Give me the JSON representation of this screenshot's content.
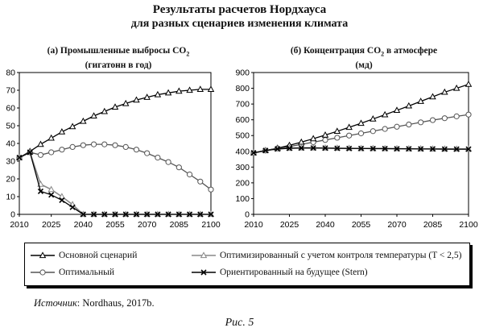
{
  "figure": {
    "title_line1": "Результаты расчетов Нордхауса",
    "title_line2": "для разных сценариев изменения климата",
    "source_label": "Источник",
    "source_text": ": Nordhaus, 2017b.",
    "caption": "Рис. 5"
  },
  "colors": {
    "base": "#000000",
    "optimal": "#555555",
    "temp_limited": "#888888",
    "stern": "#000000"
  },
  "legend": {
    "items": [
      {
        "label": "Основной сценарий",
        "series_key": "base",
        "marker": "triangle"
      },
      {
        "label": "Оптимизированный с учетом контроля температуры (T < 2,5)",
        "series_key": "temp_limited",
        "marker": "triangle"
      },
      {
        "label": "Оптимальный",
        "series_key": "optimal",
        "marker": "circle"
      },
      {
        "label": "Ориентированный на будущее (Stern)",
        "series_key": "stern",
        "marker": "cross"
      }
    ]
  },
  "chart_data": [
    {
      "type": "line",
      "title_line1": "(а) Промышленные выбросы CO",
      "title_sub": "2",
      "title_line2": "(гигатонн в год)",
      "x": [
        2010,
        2015,
        2020,
        2025,
        2030,
        2035,
        2040,
        2045,
        2050,
        2055,
        2060,
        2065,
        2070,
        2075,
        2080,
        2085,
        2090,
        2095,
        2100
      ],
      "xlim": [
        2010,
        2100
      ],
      "xticks": [
        2010,
        2025,
        2040,
        2055,
        2070,
        2085,
        2100
      ],
      "ylim": [
        0,
        80
      ],
      "yticks": [
        0,
        10,
        20,
        30,
        40,
        50,
        60,
        70,
        80
      ],
      "grid": false,
      "series": [
        {
          "key": "base",
          "name": "Основной сценарий",
          "marker": "triangle",
          "values": [
            32,
            35.5,
            39.5,
            43,
            46.5,
            49.5,
            52.5,
            55.5,
            58,
            60.5,
            62.5,
            64.5,
            66,
            67.5,
            68.5,
            69.5,
            70,
            70.5,
            70.5
          ]
        },
        {
          "key": "optimal",
          "name": "Оптимальный",
          "marker": "circle",
          "values": [
            32,
            35,
            33.5,
            35,
            36.5,
            38,
            39,
            39.5,
            39.5,
            39,
            38,
            36.5,
            34.5,
            32,
            29.5,
            26.5,
            22.5,
            18.5,
            14
          ]
        },
        {
          "key": "temp_limited",
          "name": "Оптимизированный с учетом контроля температуры (T < 2,5)",
          "marker": "triangle",
          "values": [
            32,
            35,
            17,
            14,
            10,
            5.5,
            0,
            0,
            0,
            0,
            0,
            0,
            0,
            0,
            0,
            0,
            0,
            0,
            0
          ]
        },
        {
          "key": "stern",
          "name": "Ориентированный на будущее (Stern)",
          "marker": "cross",
          "values": [
            32,
            35,
            13,
            11,
            8,
            4,
            0,
            0,
            0,
            0,
            0,
            0,
            0,
            0,
            0,
            0,
            0,
            0,
            0
          ]
        }
      ]
    },
    {
      "type": "line",
      "title_line1": "(б) Концентрация CO",
      "title_sub": "2",
      "title_after_sub": " в атмосфере",
      "title_line2": "(мд)",
      "x": [
        2010,
        2015,
        2020,
        2025,
        2030,
        2035,
        2040,
        2045,
        2050,
        2055,
        2060,
        2065,
        2070,
        2075,
        2080,
        2085,
        2090,
        2095,
        2100
      ],
      "xlim": [
        2010,
        2100
      ],
      "xticks": [
        2010,
        2025,
        2040,
        2055,
        2070,
        2085,
        2100
      ],
      "ylim": [
        0,
        900
      ],
      "yticks": [
        0,
        100,
        200,
        300,
        400,
        500,
        600,
        700,
        800,
        900
      ],
      "grid": false,
      "series": [
        {
          "key": "base",
          "name": "Основной сценарий",
          "marker": "triangle",
          "values": [
            390,
            405,
            420,
            438,
            458,
            480,
            503,
            527,
            552,
            578,
            605,
            632,
            660,
            688,
            717,
            746,
            775,
            800,
            825
          ]
        },
        {
          "key": "optimal",
          "name": "Оптимальный",
          "marker": "circle",
          "values": [
            390,
            405,
            418,
            430,
            444,
            458,
            472,
            486,
            500,
            514,
            528,
            542,
            556,
            570,
            584,
            598,
            610,
            622,
            633
          ]
        },
        {
          "key": "temp_limited",
          "name": "Оптимизированный с учетом контроля температуры (T < 2,5)",
          "marker": "triangle",
          "values": [
            390,
            405,
            416,
            420,
            422,
            422,
            421,
            420,
            419,
            418,
            418,
            417,
            417,
            416,
            416,
            415,
            415,
            414,
            414
          ]
        },
        {
          "key": "stern",
          "name": "Ориентированный на будущее (Stern)",
          "marker": "cross",
          "values": [
            390,
            405,
            415,
            419,
            421,
            421,
            420,
            419,
            418,
            418,
            417,
            417,
            416,
            416,
            415,
            415,
            414,
            414,
            414
          ]
        }
      ]
    }
  ]
}
